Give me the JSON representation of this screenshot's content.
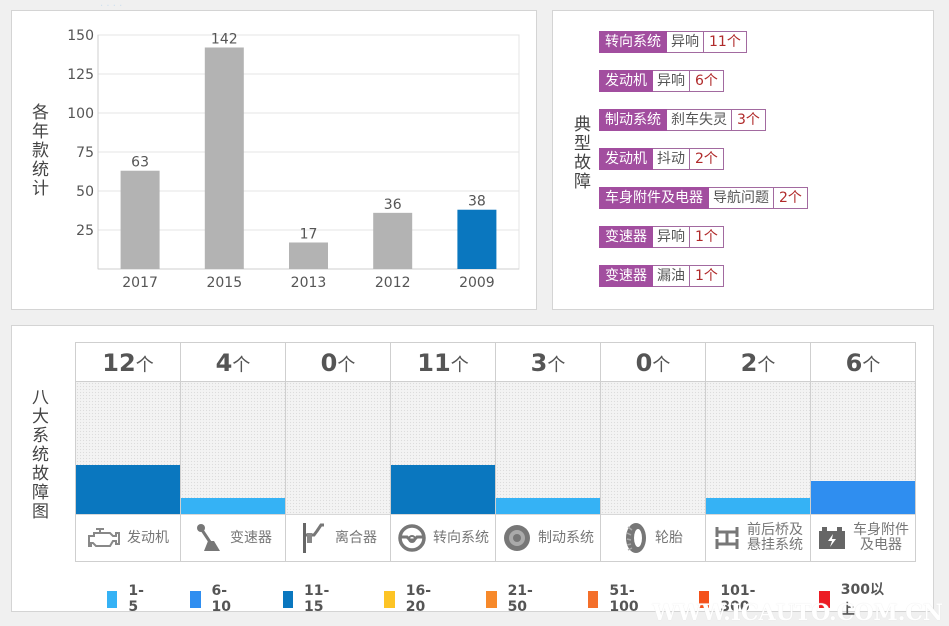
{
  "faded_header": "· ·  · ·",
  "watermark": "WWW.ICAUTO.COM.CN",
  "years_panel": {
    "label": "各年款统计"
  },
  "faults_panel": {
    "label": "典型故障",
    "items": [
      {
        "system": "转向系统",
        "fault": "异响",
        "count": "11个"
      },
      {
        "system": "发动机",
        "fault": "异响",
        "count": "6个"
      },
      {
        "system": "制动系统",
        "fault": "刹车失灵",
        "count": "3个"
      },
      {
        "system": "发动机",
        "fault": "抖动",
        "count": "2个"
      },
      {
        "system": "车身附件及电器",
        "fault": "导航问题",
        "count": "2个"
      },
      {
        "system": "变速器",
        "fault": "异响",
        "count": "1个"
      },
      {
        "system": "变速器",
        "fault": "漏油",
        "count": "1个"
      }
    ]
  },
  "systems_panel": {
    "label": "八大系统故障图",
    "unit": "个",
    "systems": [
      {
        "name": "发动机",
        "count": 12,
        "icon": "engine-icon"
      },
      {
        "name": "变速器",
        "count": 4,
        "icon": "gear-shifter-icon"
      },
      {
        "name": "离合器",
        "count": 0,
        "icon": "clutch-icon"
      },
      {
        "name": "转向系统",
        "count": 11,
        "icon": "steering-wheel-icon"
      },
      {
        "name": "制动系统",
        "count": 3,
        "icon": "brake-disc-icon"
      },
      {
        "name": "轮胎",
        "count": 0,
        "icon": "tire-icon"
      },
      {
        "name": "前后桥及悬挂系统",
        "count": 2,
        "icon": "axle-suspension-icon"
      },
      {
        "name": "车身附件及电器",
        "count": 6,
        "icon": "battery-icon"
      }
    ],
    "legend": [
      {
        "label": "1-5",
        "min": 1,
        "max": 5,
        "color": "#35b2f5",
        "level": 1
      },
      {
        "label": "6-10",
        "min": 6,
        "max": 10,
        "color": "#2f8ef0",
        "level": 2
      },
      {
        "label": "11-15",
        "min": 11,
        "max": 15,
        "color": "#0a77bf",
        "level": 3
      },
      {
        "label": "16-20",
        "min": 16,
        "max": 20,
        "color": "#fdc425",
        "level": 4
      },
      {
        "label": "21-50",
        "min": 21,
        "max": 50,
        "color": "#f7892a",
        "level": 5
      },
      {
        "label": "51-100",
        "min": 51,
        "max": 100,
        "color": "#f46f2a",
        "level": 6
      },
      {
        "label": "101-300",
        "min": 101,
        "max": 300,
        "color": "#f4511a",
        "level": 7
      },
      {
        "label": "300以上",
        "min": 301,
        "max": null,
        "color": "#ec1c24",
        "level": 8
      }
    ]
  },
  "chart_data": [
    {
      "type": "bar",
      "title": "",
      "xlabel": "",
      "ylabel": "各年款统计",
      "categories": [
        "2017",
        "2015",
        "2013",
        "2012",
        "2009"
      ],
      "values": [
        63,
        142,
        17,
        36,
        38
      ],
      "highlight_index": 4,
      "bar_color": "#b3b3b3",
      "highlight_color": "#0a77bf",
      "yticks": [
        25,
        50,
        75,
        100,
        125,
        150
      ],
      "ylim": [
        0,
        150
      ],
      "grid": true,
      "data_labels": true
    },
    {
      "type": "bar",
      "title": "八大系统故障图",
      "categories": [
        "发动机",
        "变速器",
        "离合器",
        "转向系统",
        "制动系统",
        "轮胎",
        "前后桥及悬挂系统",
        "车身附件及电器"
      ],
      "values": [
        12,
        4,
        0,
        11,
        3,
        0,
        2,
        6
      ],
      "legend": "bottom"
    }
  ]
}
